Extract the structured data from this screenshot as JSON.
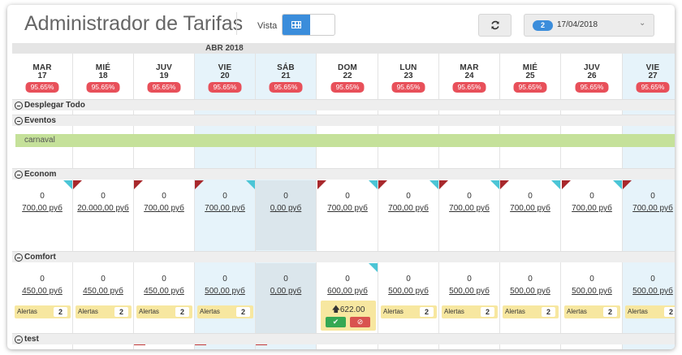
{
  "header": {
    "title": "Administrador de Tarifas",
    "vista_label": "Vista",
    "view_icon": "grid-icon",
    "refresh_icon": "refresh-icon",
    "date_badge": "2",
    "date_value": "17/04/2018"
  },
  "calendar": {
    "month": "ABR 2018",
    "days": [
      {
        "name": "MAR",
        "num": "17",
        "pct": "95.65%"
      },
      {
        "name": "MIÉ",
        "num": "18",
        "pct": "95.65%"
      },
      {
        "name": "JUV",
        "num": "19",
        "pct": "95.65%"
      },
      {
        "name": "VIE",
        "num": "20",
        "pct": "95.65%"
      },
      {
        "name": "SÁB",
        "num": "21",
        "pct": "95.65%"
      },
      {
        "name": "DOM",
        "num": "22",
        "pct": "95.65%"
      },
      {
        "name": "LUN",
        "num": "23",
        "pct": "95.65%"
      },
      {
        "name": "MAR",
        "num": "24",
        "pct": "95.65%"
      },
      {
        "name": "MIÉ",
        "num": "25",
        "pct": "95.65%"
      },
      {
        "name": "JUV",
        "num": "26",
        "pct": "95.65%"
      },
      {
        "name": "VIE",
        "num": "27",
        "pct": "95.65%"
      }
    ]
  },
  "sections": {
    "expand_all": "Desplegar Todo",
    "events": "Eventos",
    "econom": "Econom",
    "comfort": "Comfort",
    "test": "test"
  },
  "event": {
    "label": "carnaval"
  },
  "econom": {
    "values": [
      "0",
      "0",
      "0",
      "0",
      "0",
      "0",
      "0",
      "0",
      "0",
      "0",
      "0"
    ],
    "prices": [
      "700,00 руб",
      "20.000,00 руб",
      "700,00 руб",
      "700,00 руб",
      "0,00 руб",
      "700,00 руб",
      "700,00 руб",
      "700,00 руб",
      "700,00 руб",
      "700,00 руб",
      "700,00 руб"
    ]
  },
  "comfort": {
    "values": [
      "0",
      "0",
      "0",
      "0",
      "0",
      "0",
      "0",
      "0",
      "0",
      "0",
      "0"
    ],
    "prices": [
      "450,00 руб",
      "450,00 руб",
      "450,00 руб",
      "500,00 руб",
      "0,00 руб",
      "600,00 руб",
      "500,00 руб",
      "500,00 руб",
      "500,00 руб",
      "500,00 руб",
      "500,00 руб"
    ],
    "alert_label": "Alertas",
    "alert_count": "2",
    "pending_value": "622.00",
    "pending_icon": "arrow-up-icon",
    "accept_icon": "check-icon",
    "reject_icon": "ban-icon"
  },
  "colors": {
    "accent": "#3b8ddb",
    "percent_badge": "#e8505a",
    "event": "#c5e19a",
    "alert": "#f7e7a0",
    "weekend": "#e6f3fa",
    "corner_red": "#a8282c",
    "corner_teal": "#4bc5d6"
  }
}
